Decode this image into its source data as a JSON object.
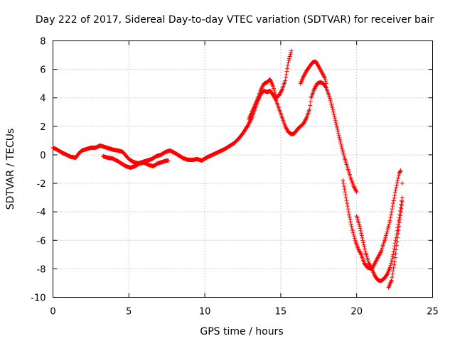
{
  "chart_data": {
    "type": "scatter",
    "title": "Day 222 of 2017, Sidereal Day-to-day VTEC variation (SDTVAR) for receiver bair",
    "xlabel": "GPS time / hours",
    "ylabel": "SDTVAR / TECUs",
    "xlim": [
      0,
      25
    ],
    "ylim": [
      -10,
      8
    ],
    "xticks": [
      "0",
      "5",
      "10",
      "15",
      "20",
      "25"
    ],
    "yticks": [
      "-10",
      "-8",
      "-6",
      "-4",
      "-2",
      "0",
      "2",
      "4",
      "6",
      "8"
    ],
    "grid": true,
    "legend": "none",
    "marker": "plus",
    "color": "#ff0000",
    "series": [
      {
        "points": [
          [
            0.0,
            0.5
          ],
          [
            0.3,
            0.35
          ],
          [
            0.6,
            0.15
          ],
          [
            0.9,
            0.0
          ],
          [
            1.2,
            -0.15
          ],
          [
            1.5,
            -0.2
          ],
          [
            1.7,
            0.1
          ],
          [
            1.9,
            0.3
          ],
          [
            2.2,
            0.4
          ],
          [
            2.5,
            0.5
          ],
          [
            2.8,
            0.5
          ],
          [
            3.1,
            0.65
          ],
          [
            3.4,
            0.55
          ],
          [
            3.7,
            0.45
          ],
          [
            4.0,
            0.35
          ],
          [
            4.3,
            0.3
          ],
          [
            4.6,
            0.2
          ],
          [
            4.8,
            -0.05
          ],
          [
            5.0,
            -0.3
          ],
          [
            5.3,
            -0.5
          ],
          [
            5.6,
            -0.6
          ],
          [
            5.9,
            -0.5
          ],
          [
            6.2,
            -0.4
          ],
          [
            6.5,
            -0.3
          ],
          [
            6.8,
            -0.1
          ],
          [
            7.1,
            0.0
          ],
          [
            7.4,
            0.2
          ],
          [
            7.7,
            0.3
          ],
          [
            8.0,
            0.15
          ],
          [
            8.3,
            -0.05
          ],
          [
            8.6,
            -0.25
          ],
          [
            8.9,
            -0.35
          ],
          [
            9.2,
            -0.35
          ],
          [
            9.5,
            -0.3
          ],
          [
            9.8,
            -0.4
          ],
          [
            10.1,
            -0.2
          ],
          [
            10.4,
            -0.05
          ],
          [
            10.7,
            0.1
          ],
          [
            11.0,
            0.25
          ],
          [
            11.3,
            0.4
          ],
          [
            11.6,
            0.6
          ],
          [
            11.9,
            0.8
          ],
          [
            12.2,
            1.1
          ],
          [
            12.5,
            1.5
          ],
          [
            12.8,
            2.0
          ],
          [
            13.1,
            2.6
          ],
          [
            13.3,
            3.2
          ],
          [
            13.5,
            3.8
          ],
          [
            13.7,
            4.3
          ],
          [
            13.9,
            4.5
          ],
          [
            14.1,
            4.4
          ],
          [
            14.3,
            4.5
          ],
          [
            14.5,
            4.2
          ],
          [
            14.7,
            3.8
          ],
          [
            14.9,
            3.2
          ],
          [
            15.1,
            2.6
          ],
          [
            15.3,
            2.0
          ],
          [
            15.5,
            1.6
          ],
          [
            15.7,
            1.45
          ],
          [
            15.9,
            1.5
          ],
          [
            16.1,
            1.8
          ],
          [
            16.3,
            2.0
          ],
          [
            16.5,
            2.2
          ],
          [
            16.7,
            2.6
          ],
          [
            16.9,
            3.2
          ],
          [
            17.0,
            4.0
          ],
          [
            17.2,
            4.6
          ],
          [
            17.4,
            5.0
          ],
          [
            17.6,
            5.1
          ],
          [
            17.8,
            5.0
          ],
          [
            18.0,
            4.7
          ],
          [
            18.2,
            4.1
          ],
          [
            18.4,
            3.3
          ],
          [
            18.6,
            2.4
          ],
          [
            18.8,
            1.5
          ],
          [
            19.0,
            0.6
          ],
          [
            19.2,
            -0.2
          ],
          [
            19.4,
            -0.9
          ],
          [
            19.6,
            -1.6
          ],
          [
            19.8,
            -2.2
          ],
          [
            20.0,
            -2.6
          ]
        ]
      },
      {
        "points": [
          [
            3.3,
            -0.1
          ],
          [
            3.6,
            -0.2
          ],
          [
            3.9,
            -0.25
          ],
          [
            4.2,
            -0.4
          ],
          [
            4.5,
            -0.6
          ],
          [
            4.8,
            -0.8
          ],
          [
            5.1,
            -0.9
          ],
          [
            5.4,
            -0.8
          ],
          [
            5.7,
            -0.6
          ],
          [
            6.0,
            -0.55
          ],
          [
            6.3,
            -0.7
          ],
          [
            6.6,
            -0.8
          ],
          [
            6.9,
            -0.6
          ],
          [
            7.2,
            -0.5
          ],
          [
            7.5,
            -0.4
          ],
          [
            7.6,
            -0.4
          ]
        ]
      },
      {
        "points": [
          [
            12.9,
            2.5
          ],
          [
            13.1,
            3.0
          ],
          [
            13.3,
            3.5
          ],
          [
            13.5,
            4.0
          ],
          [
            13.7,
            4.6
          ],
          [
            13.9,
            5.0
          ],
          [
            14.1,
            5.1
          ],
          [
            14.3,
            5.3
          ],
          [
            14.5,
            4.8
          ],
          [
            14.7,
            4.0
          ],
          [
            14.9,
            4.2
          ],
          [
            15.1,
            4.6
          ],
          [
            15.3,
            5.2
          ],
          [
            15.5,
            6.5
          ],
          [
            15.7,
            7.3
          ]
        ]
      },
      {
        "points": [
          [
            16.3,
            5.0
          ],
          [
            16.5,
            5.5
          ],
          [
            16.7,
            5.9
          ],
          [
            16.9,
            6.2
          ],
          [
            17.1,
            6.5
          ],
          [
            17.3,
            6.55
          ],
          [
            17.5,
            6.2
          ],
          [
            17.7,
            5.8
          ],
          [
            17.9,
            5.4
          ],
          [
            18.0,
            5.0
          ]
        ]
      },
      {
        "points": [
          [
            19.1,
            -1.8
          ],
          [
            19.3,
            -3.0
          ],
          [
            19.5,
            -4.2
          ],
          [
            19.7,
            -5.2
          ],
          [
            19.9,
            -6.0
          ],
          [
            20.1,
            -6.6
          ],
          [
            20.3,
            -7.0
          ],
          [
            20.5,
            -7.6
          ],
          [
            20.7,
            -7.9
          ],
          [
            21.0,
            -8.0
          ],
          [
            21.3,
            -7.4
          ],
          [
            21.6,
            -6.8
          ],
          [
            21.9,
            -5.8
          ],
          [
            22.2,
            -4.6
          ],
          [
            22.4,
            -3.4
          ],
          [
            22.6,
            -2.3
          ],
          [
            22.8,
            -1.3
          ],
          [
            22.9,
            -1.1
          ]
        ]
      },
      {
        "points": [
          [
            20.0,
            -4.3
          ],
          [
            20.2,
            -5.0
          ],
          [
            20.4,
            -6.0
          ],
          [
            20.6,
            -6.9
          ],
          [
            20.8,
            -7.6
          ],
          [
            21.0,
            -8.0
          ],
          [
            21.2,
            -8.5
          ],
          [
            21.4,
            -8.8
          ],
          [
            21.6,
            -8.85
          ],
          [
            21.8,
            -8.7
          ],
          [
            22.0,
            -8.4
          ],
          [
            22.2,
            -7.9
          ],
          [
            22.4,
            -7.0
          ],
          [
            22.6,
            -5.8
          ],
          [
            22.8,
            -4.4
          ],
          [
            23.0,
            -3.0
          ],
          [
            23.0,
            -2.0
          ]
        ]
      },
      {
        "points": [
          [
            22.1,
            -9.3
          ],
          [
            22.3,
            -8.8
          ],
          [
            22.5,
            -7.5
          ],
          [
            22.7,
            -5.8
          ],
          [
            22.85,
            -4.5
          ],
          [
            23.0,
            -3.3
          ]
        ]
      }
    ]
  }
}
